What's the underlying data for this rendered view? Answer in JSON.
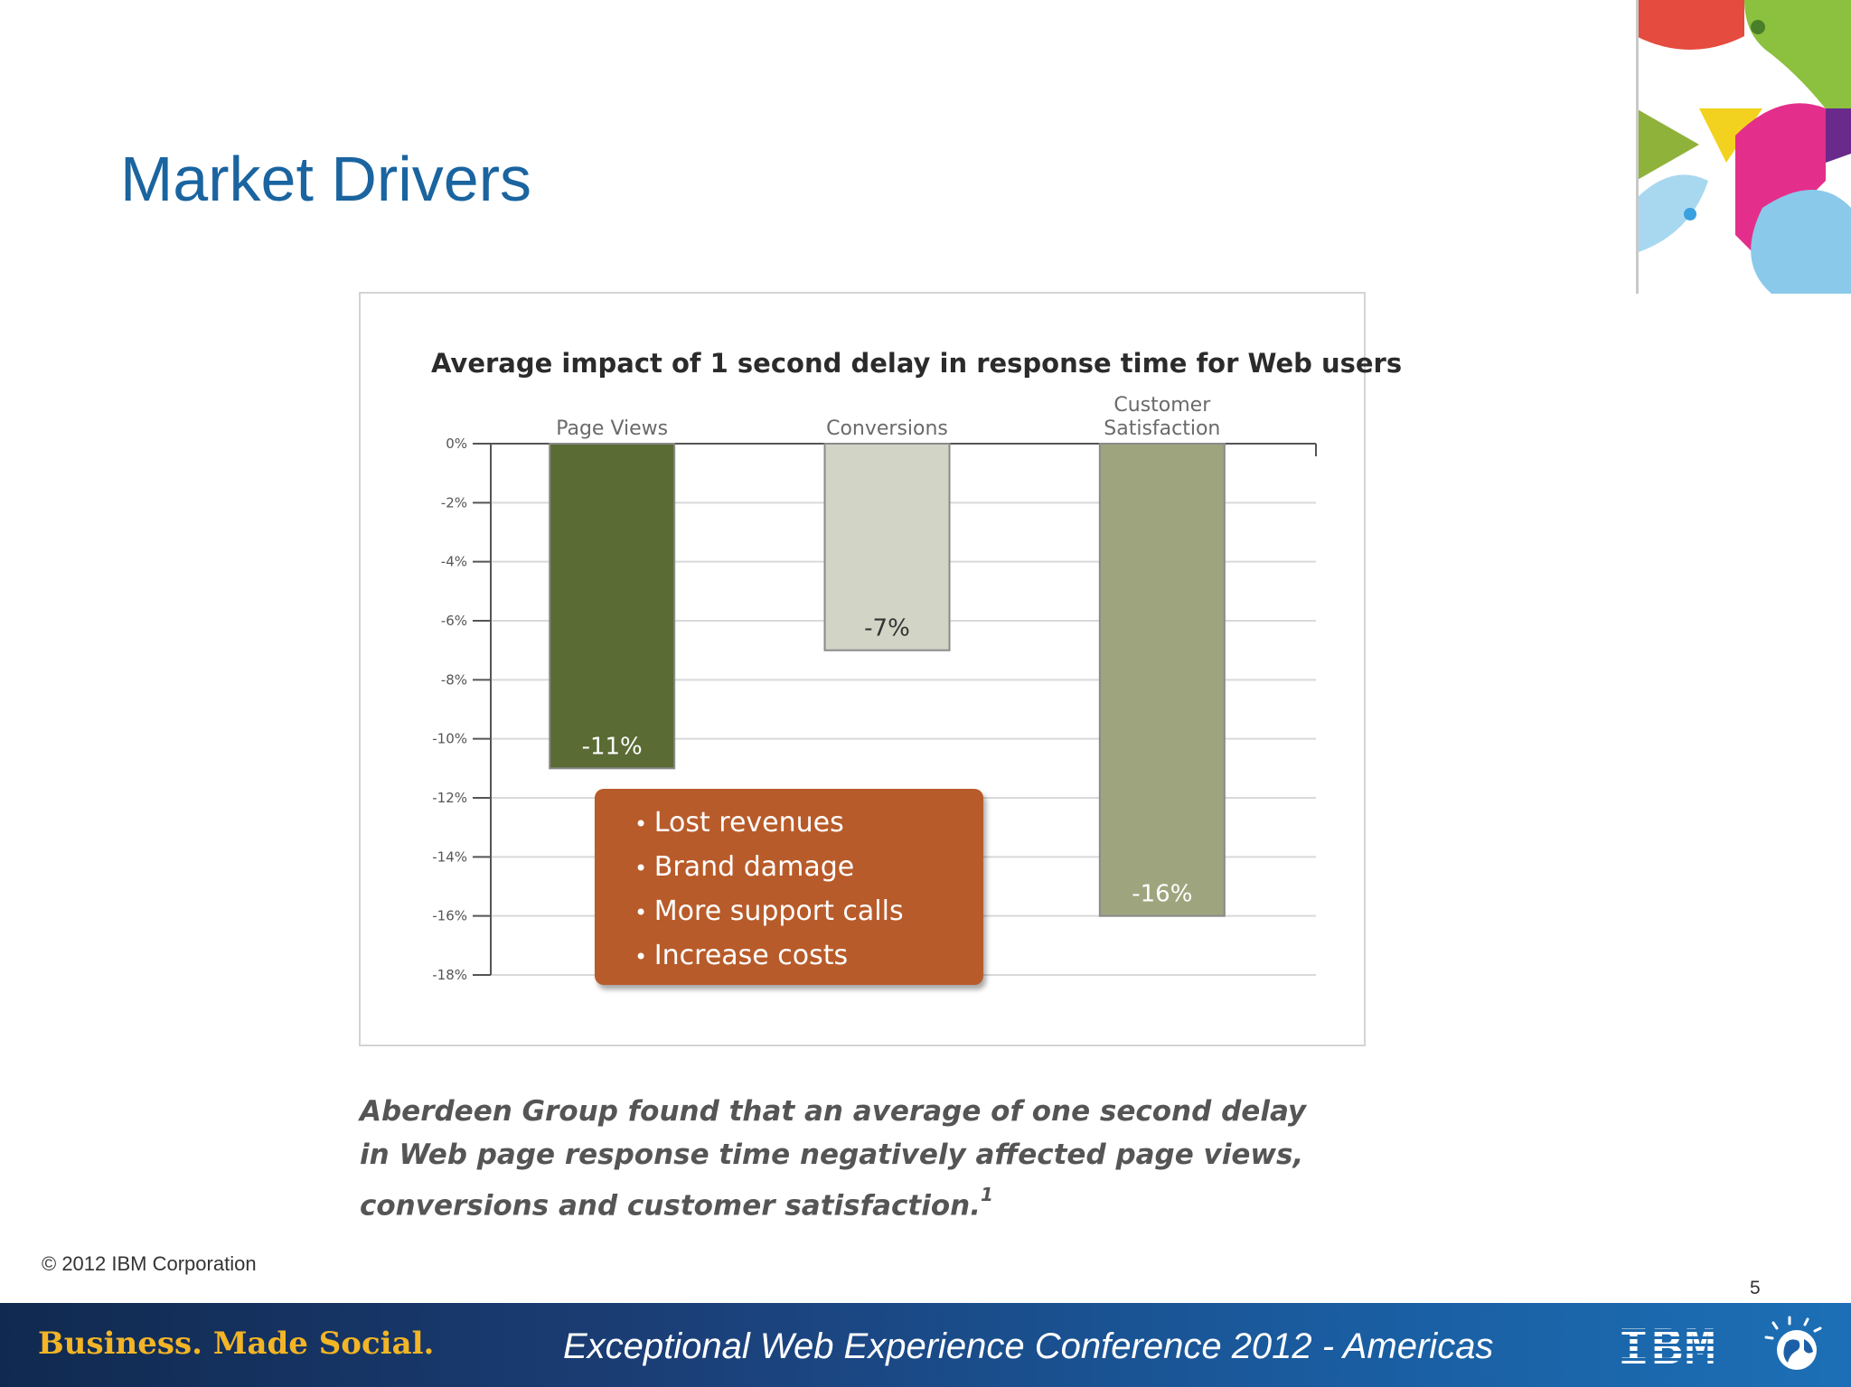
{
  "slide": {
    "title": "Market Drivers",
    "copyright": "© 2012  IBM Corporation",
    "page_number": "5",
    "caption": "Aberdeen Group found that an average of one second delay in Web page response time negatively affected page views, conversions and customer satisfaction.",
    "caption_footnote": "1",
    "footer": {
      "tagline": "Business. Made Social.",
      "conference": "Exceptional Web Experience Conference 2012 - Americas",
      "logo_text": "IBM"
    },
    "callout_items": [
      "Lost revenues",
      "Brand damage",
      "More support calls",
      "Increase costs"
    ],
    "colors": {
      "title": "#1a64a0",
      "callout": "#b85b2a"
    }
  },
  "chart_data": {
    "type": "bar",
    "title": "Average impact of 1 second delay in response time for Web users",
    "categories": [
      [
        "Page Views"
      ],
      [
        "Conversions"
      ],
      [
        "Customer",
        "Satisfaction"
      ]
    ],
    "values": [
      -11,
      -7,
      -16
    ],
    "value_labels": [
      "-11%",
      "-7%",
      "-16%"
    ],
    "bar_colors": [
      "#5a6b34",
      "#d2d4c6",
      "#9ea57e"
    ],
    "value_label_colors": [
      "#ffffff",
      "#333333",
      "#ffffff"
    ],
    "ylim": [
      -18,
      0
    ],
    "y_ticks": [
      0,
      -2,
      -4,
      -6,
      -8,
      -10,
      -12,
      -14,
      -16,
      -18
    ],
    "y_tick_labels": [
      "0%",
      "-2%",
      "-4%",
      "-6%",
      "-8%",
      "-10%",
      "-12%",
      "-14%",
      "-16%",
      "-18%"
    ],
    "xlabel": "",
    "ylabel": "",
    "grid": true,
    "category_label_position": "top"
  }
}
